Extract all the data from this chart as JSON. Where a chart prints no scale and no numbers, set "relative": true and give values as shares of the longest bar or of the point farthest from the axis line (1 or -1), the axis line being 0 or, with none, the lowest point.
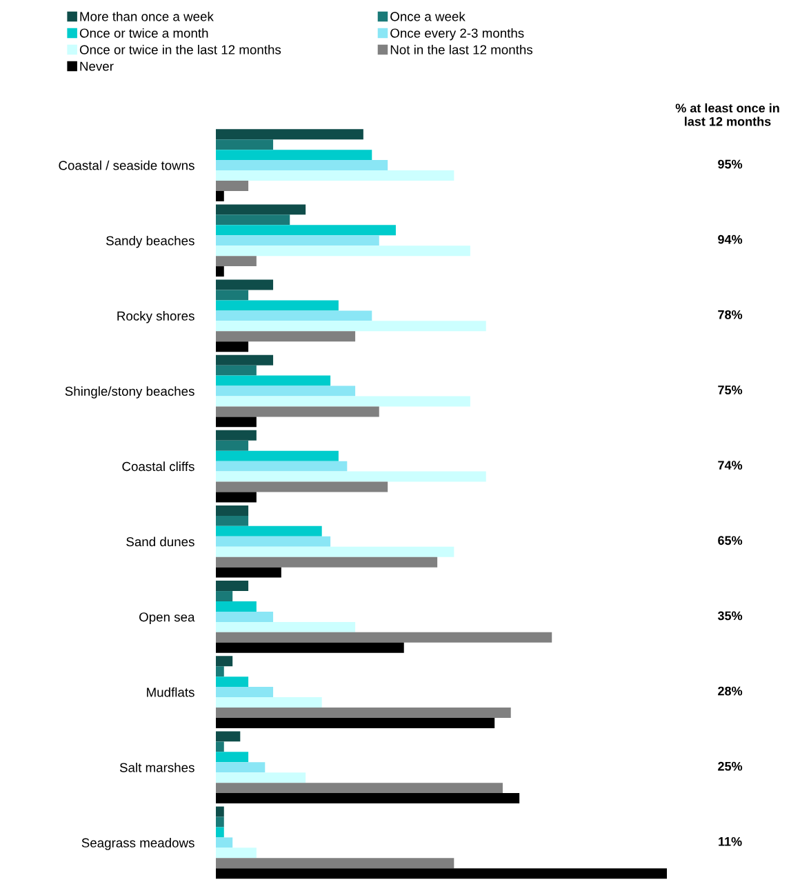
{
  "chart_data": {
    "type": "bar",
    "orientation": "horizontal",
    "relative": true,
    "legend": "top",
    "grid": false,
    "categories": [
      "Coastal / seaside towns",
      "Sandy beaches",
      "Rocky shores",
      "Shingle/stony beaches",
      "Coastal cliffs",
      "Sand dunes",
      "Open sea",
      "Mudflats",
      "Salt marshes",
      "Seagrass meadows"
    ],
    "series": [
      {
        "name": "More than once a week",
        "color": "#0f4d4a",
        "values": [
          0.327,
          0.199,
          0.127,
          0.127,
          0.09,
          0.072,
          0.072,
          0.037,
          0.054,
          0.018
        ]
      },
      {
        "name": "Once a week",
        "color": "#1a7a78",
        "values": [
          0.127,
          0.164,
          0.072,
          0.09,
          0.072,
          0.072,
          0.037,
          0.018,
          0.018,
          0.018
        ]
      },
      {
        "name": "Once or twice a month",
        "color": "#00cccc",
        "values": [
          0.346,
          0.399,
          0.272,
          0.254,
          0.272,
          0.235,
          0.09,
          0.072,
          0.072,
          0.018
        ]
      },
      {
        "name": "Once every 2-3 months",
        "color": "#8ae6f5",
        "values": [
          0.381,
          0.362,
          0.346,
          0.309,
          0.291,
          0.254,
          0.127,
          0.127,
          0.109,
          0.037
        ]
      },
      {
        "name": "Once or twice in the last 12 months",
        "color": "#ccffff",
        "values": [
          0.528,
          0.564,
          0.599,
          0.564,
          0.599,
          0.528,
          0.309,
          0.235,
          0.199,
          0.09
        ]
      },
      {
        "name": "Not in the last 12 months",
        "color": "#808080",
        "values": [
          0.072,
          0.09,
          0.309,
          0.362,
          0.381,
          0.491,
          0.745,
          0.654,
          0.636,
          0.528
        ]
      },
      {
        "name": "Never",
        "color": "#000000",
        "values": [
          0.018,
          0.018,
          0.072,
          0.09,
          0.09,
          0.145,
          0.417,
          0.618,
          0.673,
          1
        ]
      }
    ],
    "annotations": [
      "% at least once in\nlast 12 months",
      "95%",
      "94%",
      "78%",
      "75%",
      "74%",
      "65%",
      "35%",
      "28%",
      "25%",
      "11%"
    ]
  }
}
